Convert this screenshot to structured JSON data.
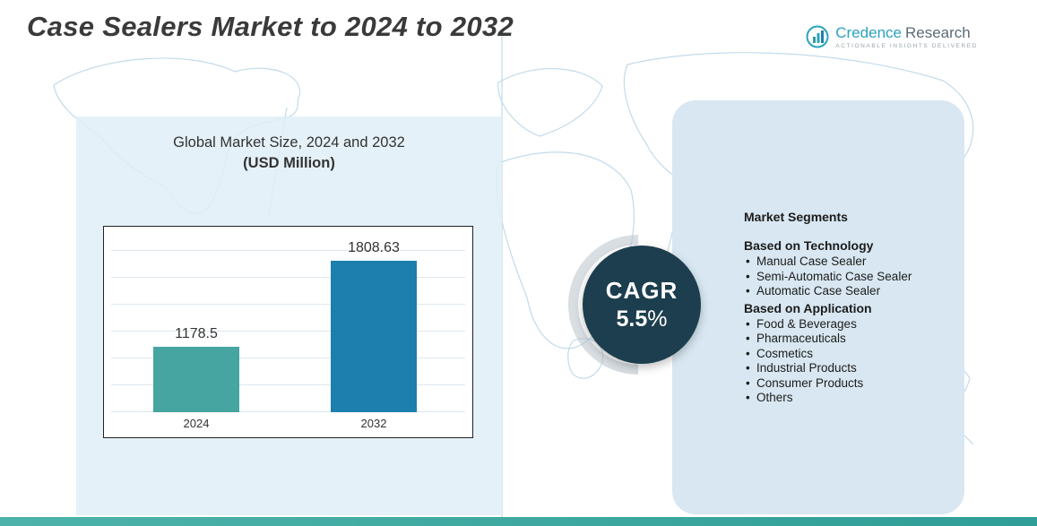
{
  "page": {
    "title": "Case Sealers Market to 2024 to 2032"
  },
  "logo": {
    "name_primary": "Credence",
    "name_secondary": "Research",
    "tagline": "Actionable Insights Delivered"
  },
  "chart_panel": {
    "heading_line1": "Global Market Size, 2024 and 2032",
    "heading_line2": "(USD Million)"
  },
  "chart_data": {
    "type": "bar",
    "title": "Global Market Size, 2024 and 2032 (USD Million)",
    "categories": [
      "2024",
      "2032"
    ],
    "values": [
      1178.5,
      1808.63
    ],
    "value_labels": [
      "1178.5",
      "1808.63"
    ],
    "xlabel": "",
    "ylabel": "",
    "grid": true,
    "legend": false,
    "bar_colors": [
      "#46a5a0",
      "#1d7fad"
    ]
  },
  "cagr": {
    "label": "CAGR",
    "value": "5.5",
    "unit": "%"
  },
  "segments": {
    "title": "Market Segments",
    "groups": [
      {
        "heading": "Based on Technology",
        "items": [
          "Manual Case Sealer",
          "Semi-Automatic Case Sealer",
          "Automatic Case Sealer"
        ]
      },
      {
        "heading": "Based on Application",
        "items": [
          "Food & Beverages",
          "Pharmaceuticals",
          "Cosmetics",
          "Industrial Products",
          "Consumer Products",
          "Others"
        ]
      }
    ]
  },
  "colors": {
    "bar_2024": "#46a5a0",
    "bar_2032": "#1d7fad",
    "cagr_circle": "#1d3e4e",
    "accent_teal": "#35a79e",
    "panel_left_bg": "#e0eef7",
    "panel_right_bg": "#d8e7f1",
    "logo_teal": "#2aa3bd",
    "map_line": "#c2dbe9"
  }
}
